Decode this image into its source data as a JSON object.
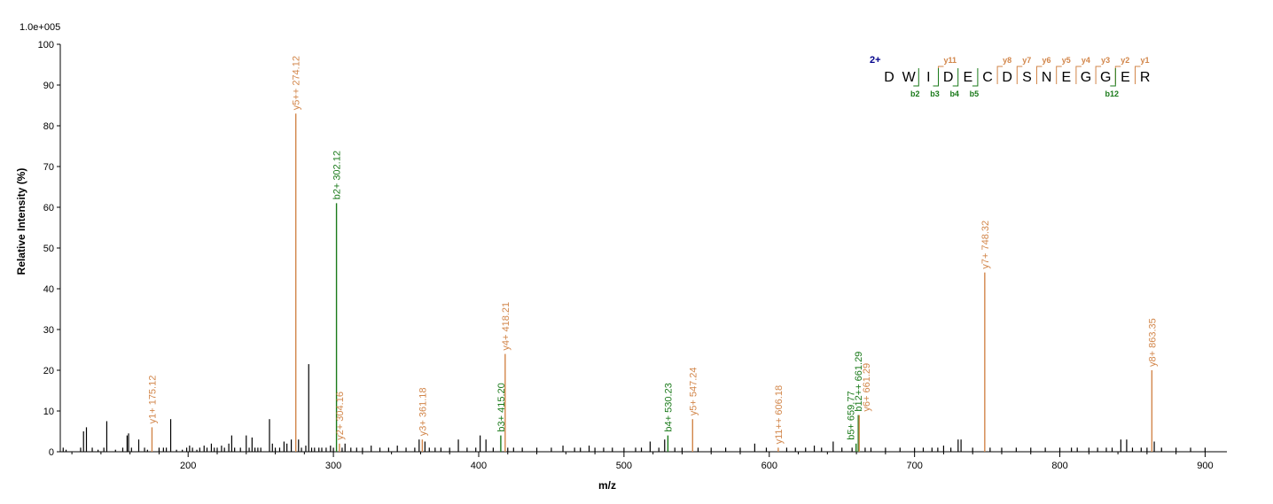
{
  "chart_data": {
    "type": "bar",
    "scale_label": "1.0e+005",
    "xlabel": "m/z",
    "ylabel": "Relative   Intensity (%)",
    "xlim": [
      112,
      915
    ],
    "ylim": [
      0,
      100
    ],
    "xticks": [
      200,
      300,
      400,
      500,
      600,
      700,
      800,
      900
    ],
    "yticks": [
      0,
      10,
      20,
      30,
      40,
      50,
      60,
      70,
      80,
      90,
      100
    ],
    "colors": {
      "y_ion": "#d2864a",
      "b_ion": "#1a7a1a",
      "noise": "#000000",
      "charge": "#00008b"
    },
    "annotated_peaks": [
      {
        "mz": 175.12,
        "intensity": 6,
        "label": "y1+ 175.12",
        "ion": "y"
      },
      {
        "mz": 274.12,
        "intensity": 83,
        "label": "y5++ 274.12",
        "ion": "y"
      },
      {
        "mz": 302.12,
        "intensity": 61,
        "label": "b2+ 302.12",
        "ion": "b"
      },
      {
        "mz": 304.16,
        "intensity": 2,
        "label": "y2+ 304.16",
        "ion": "y"
      },
      {
        "mz": 361.18,
        "intensity": 3,
        "label": "y3+ 361.18",
        "ion": "y"
      },
      {
        "mz": 415.2,
        "intensity": 4,
        "label": "b3+ 415.20",
        "ion": "b"
      },
      {
        "mz": 418.21,
        "intensity": 24,
        "label": "y4+ 418.21",
        "ion": "y"
      },
      {
        "mz": 530.23,
        "intensity": 4,
        "label": "b4+ 530.23",
        "ion": "b"
      },
      {
        "mz": 547.24,
        "intensity": 8,
        "label": "y5+ 547.24",
        "ion": "y"
      },
      {
        "mz": 606.18,
        "intensity": 1,
        "label": "y11++ 606.18",
        "ion": "y"
      },
      {
        "mz": 659.77,
        "intensity": 2,
        "label": "b5+ 659.77",
        "ion": "b"
      },
      {
        "mz": 661.29,
        "intensity": 9,
        "label": "b12++ 661.29",
        "ion": "b"
      },
      {
        "mz": 661.29,
        "intensity": 9,
        "label": "y6+ 661.29",
        "ion": "y"
      },
      {
        "mz": 748.32,
        "intensity": 44,
        "label": "y7+ 748.32",
        "ion": "y"
      },
      {
        "mz": 863.35,
        "intensity": 20,
        "label": "y8+ 863.35",
        "ion": "y"
      }
    ],
    "other_peaks": [
      [
        114,
        1
      ],
      [
        116,
        0.5
      ],
      [
        126,
        1
      ],
      [
        128,
        5
      ],
      [
        130,
        6
      ],
      [
        134,
        1
      ],
      [
        138,
        0.5
      ],
      [
        142,
        1
      ],
      [
        144,
        7.5
      ],
      [
        150,
        0.5
      ],
      [
        155,
        1
      ],
      [
        158,
        4
      ],
      [
        159,
        4.5
      ],
      [
        161,
        1
      ],
      [
        166,
        3
      ],
      [
        170,
        1
      ],
      [
        172,
        0.5
      ],
      [
        180,
        1
      ],
      [
        183,
        1
      ],
      [
        185,
        1
      ],
      [
        188,
        8
      ],
      [
        192,
        0.5
      ],
      [
        196,
        0.5
      ],
      [
        199,
        1
      ],
      [
        201,
        1.5
      ],
      [
        203,
        1
      ],
      [
        206,
        0.5
      ],
      [
        208,
        1
      ],
      [
        211,
        1.5
      ],
      [
        213,
        1
      ],
      [
        216,
        2
      ],
      [
        218,
        1
      ],
      [
        220,
        1
      ],
      [
        223,
        1.5
      ],
      [
        225,
        1
      ],
      [
        228,
        2
      ],
      [
        230,
        4
      ],
      [
        232,
        1
      ],
      [
        236,
        1
      ],
      [
        240,
        4
      ],
      [
        242,
        1
      ],
      [
        244,
        3.5
      ],
      [
        246,
        1
      ],
      [
        248,
        1
      ],
      [
        250,
        1
      ],
      [
        256,
        8
      ],
      [
        258,
        2
      ],
      [
        260,
        1
      ],
      [
        263,
        1
      ],
      [
        266,
        2.5
      ],
      [
        268,
        2
      ],
      [
        271,
        3
      ],
      [
        276,
        3
      ],
      [
        278,
        1
      ],
      [
        281,
        1.5
      ],
      [
        283,
        21.5
      ],
      [
        285,
        1
      ],
      [
        287,
        1
      ],
      [
        290,
        1
      ],
      [
        292,
        1
      ],
      [
        295,
        1
      ],
      [
        298,
        1.5
      ],
      [
        300,
        1
      ],
      [
        306,
        1
      ],
      [
        308,
        2
      ],
      [
        312,
        1
      ],
      [
        316,
        1
      ],
      [
        320,
        1
      ],
      [
        326,
        1.5
      ],
      [
        332,
        1
      ],
      [
        338,
        1
      ],
      [
        344,
        1.5
      ],
      [
        350,
        1
      ],
      [
        356,
        1
      ],
      [
        359,
        3
      ],
      [
        363,
        2.5
      ],
      [
        366,
        1
      ],
      [
        370,
        1
      ],
      [
        374,
        1
      ],
      [
        380,
        1
      ],
      [
        386,
        3
      ],
      [
        392,
        1
      ],
      [
        398,
        1
      ],
      [
        401,
        4
      ],
      [
        405,
        3
      ],
      [
        410,
        1
      ],
      [
        420,
        1
      ],
      [
        424,
        1
      ],
      [
        430,
        1
      ],
      [
        440,
        1
      ],
      [
        450,
        1
      ],
      [
        458,
        1.5
      ],
      [
        466,
        1
      ],
      [
        470,
        1
      ],
      [
        476,
        1.5
      ],
      [
        480,
        1
      ],
      [
        486,
        1
      ],
      [
        492,
        1
      ],
      [
        500,
        1
      ],
      [
        508,
        1
      ],
      [
        512,
        1
      ],
      [
        518,
        2.5
      ],
      [
        524,
        1
      ],
      [
        528,
        3
      ],
      [
        535,
        1
      ],
      [
        540,
        1
      ],
      [
        551,
        1
      ],
      [
        560,
        1
      ],
      [
        570,
        1
      ],
      [
        580,
        1
      ],
      [
        590,
        2
      ],
      [
        598,
        1
      ],
      [
        612,
        1
      ],
      [
        618,
        1
      ],
      [
        625,
        1
      ],
      [
        631,
        1.5
      ],
      [
        636,
        1
      ],
      [
        644,
        2.5
      ],
      [
        650,
        1
      ],
      [
        657,
        1
      ],
      [
        666,
        1
      ],
      [
        670,
        1
      ],
      [
        680,
        1
      ],
      [
        690,
        1
      ],
      [
        700,
        1
      ],
      [
        706,
        1
      ],
      [
        712,
        1
      ],
      [
        716,
        1
      ],
      [
        720,
        1.5
      ],
      [
        725,
        1
      ],
      [
        730,
        3
      ],
      [
        732,
        3
      ],
      [
        740,
        1
      ],
      [
        752,
        1
      ],
      [
        760,
        1
      ],
      [
        770,
        1
      ],
      [
        780,
        1
      ],
      [
        790,
        1
      ],
      [
        800,
        1
      ],
      [
        808,
        1
      ],
      [
        812,
        1
      ],
      [
        820,
        1
      ],
      [
        826,
        1
      ],
      [
        832,
        1
      ],
      [
        836,
        1
      ],
      [
        842,
        3
      ],
      [
        846,
        3
      ],
      [
        850,
        1
      ],
      [
        856,
        1
      ],
      [
        860,
        1
      ],
      [
        865,
        2.5
      ],
      [
        870,
        1
      ],
      [
        880,
        1
      ],
      [
        890,
        1
      ],
      [
        900,
        1
      ]
    ],
    "sequence": {
      "charge": "2+",
      "residues": [
        "D",
        "W",
        "I",
        "D",
        "E",
        "C",
        "D",
        "S",
        "N",
        "E",
        "G",
        "G",
        "E",
        "R"
      ],
      "y_ions": [
        {
          "label": "y11",
          "after": 2
        },
        {
          "label": "y8",
          "after": 5
        },
        {
          "label": "y7",
          "after": 6
        },
        {
          "label": "y6",
          "after": 7
        },
        {
          "label": "y5",
          "after": 8
        },
        {
          "label": "y4",
          "after": 9
        },
        {
          "label": "y3",
          "after": 10
        },
        {
          "label": "y2",
          "after": 11
        },
        {
          "label": "y1",
          "after": 12
        }
      ],
      "b_ions": [
        {
          "label": "b2",
          "after": 1
        },
        {
          "label": "b3",
          "after": 2
        },
        {
          "label": "b4",
          "after": 3
        },
        {
          "label": "b5",
          "after": 4
        },
        {
          "label": "b12",
          "after": 11
        }
      ]
    }
  }
}
